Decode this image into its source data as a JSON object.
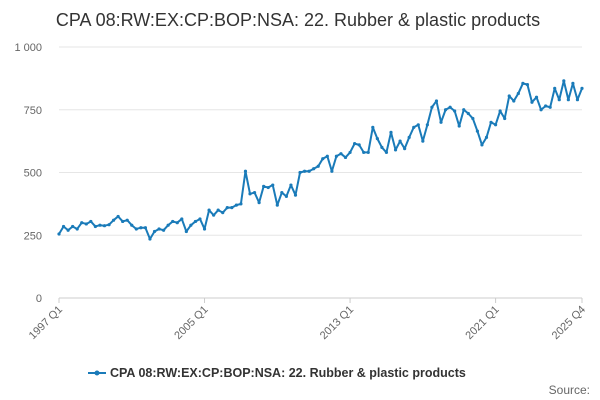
{
  "chart_data": {
    "type": "line",
    "title": "CPA 08:RW:EX:CP:BOP:NSA: 22. Rubber & plastic products",
    "xlabel": "",
    "ylabel": "",
    "ylim": [
      0,
      1000
    ],
    "y_ticks": [
      0,
      250,
      500,
      750,
      1000
    ],
    "y_tick_labels": [
      "0",
      "250",
      "500",
      "750",
      "1 000"
    ],
    "x_tick_labels": [
      "1997 Q1",
      "2005 Q1",
      "2013 Q1",
      "2021 Q1",
      "2025 Q4"
    ],
    "x_tick_indices": [
      0,
      32,
      64,
      96,
      115
    ],
    "grid": true,
    "legend_position": "bottom",
    "series": [
      {
        "name": "CPA 08:RW:EX:CP:BOP:NSA: 22. Rubber & plastic products",
        "color": "#1a7bb9",
        "x": [
          "1997 Q1",
          "1997 Q2",
          "1997 Q3",
          "1997 Q4",
          "1998 Q1",
          "1998 Q2",
          "1998 Q3",
          "1998 Q4",
          "1999 Q1",
          "1999 Q2",
          "1999 Q3",
          "1999 Q4",
          "2000 Q1",
          "2000 Q2",
          "2000 Q3",
          "2000 Q4",
          "2001 Q1",
          "2001 Q2",
          "2001 Q3",
          "2001 Q4",
          "2002 Q1",
          "2002 Q2",
          "2002 Q3",
          "2002 Q4",
          "2003 Q1",
          "2003 Q2",
          "2003 Q3",
          "2003 Q4",
          "2004 Q1",
          "2004 Q2",
          "2004 Q3",
          "2004 Q4",
          "2005 Q1",
          "2005 Q2",
          "2005 Q3",
          "2005 Q4",
          "2006 Q1",
          "2006 Q2",
          "2006 Q3",
          "2006 Q4",
          "2007 Q1",
          "2007 Q2",
          "2007 Q3",
          "2007 Q4",
          "2008 Q1",
          "2008 Q2",
          "2008 Q3",
          "2008 Q4",
          "2009 Q1",
          "2009 Q2",
          "2009 Q3",
          "2009 Q4",
          "2010 Q1",
          "2010 Q2",
          "2010 Q3",
          "2010 Q4",
          "2011 Q1",
          "2011 Q2",
          "2011 Q3",
          "2011 Q4",
          "2012 Q1",
          "2012 Q2",
          "2012 Q3",
          "2012 Q4",
          "2013 Q1",
          "2013 Q2",
          "2013 Q3",
          "2013 Q4",
          "2014 Q1",
          "2014 Q2",
          "2014 Q3",
          "2014 Q4",
          "2015 Q1",
          "2015 Q2",
          "2015 Q3",
          "2015 Q4",
          "2016 Q1",
          "2016 Q2",
          "2016 Q3",
          "2016 Q4",
          "2017 Q1",
          "2017 Q2",
          "2017 Q3",
          "2017 Q4",
          "2018 Q1",
          "2018 Q2",
          "2018 Q3",
          "2018 Q4",
          "2019 Q1",
          "2019 Q2",
          "2019 Q3",
          "2019 Q4",
          "2020 Q1",
          "2020 Q2",
          "2020 Q3",
          "2020 Q4",
          "2021 Q1",
          "2021 Q2",
          "2021 Q3",
          "2021 Q4",
          "2022 Q1",
          "2022 Q2",
          "2022 Q3",
          "2022 Q4",
          "2023 Q1",
          "2023 Q2",
          "2023 Q3",
          "2023 Q4",
          "2024 Q1",
          "2024 Q2",
          "2024 Q3",
          "2024 Q4",
          "2025 Q1",
          "2025 Q2",
          "2025 Q3",
          "2025 Q4"
        ],
        "values": [
          255,
          285,
          270,
          285,
          275,
          300,
          295,
          305,
          285,
          290,
          288,
          292,
          310,
          325,
          305,
          310,
          290,
          275,
          280,
          280,
          235,
          265,
          275,
          270,
          290,
          305,
          300,
          315,
          265,
          290,
          305,
          315,
          275,
          350,
          330,
          350,
          340,
          360,
          360,
          370,
          375,
          505,
          415,
          420,
          380,
          445,
          440,
          450,
          370,
          420,
          405,
          450,
          410,
          500,
          505,
          505,
          515,
          525,
          555,
          565,
          505,
          565,
          575,
          560,
          580,
          615,
          610,
          580,
          580,
          680,
          635,
          600,
          580,
          660,
          590,
          625,
          595,
          640,
          680,
          690,
          625,
          690,
          760,
          785,
          700,
          750,
          760,
          745,
          685,
          750,
          735,
          715,
          665,
          610,
          640,
          700,
          690,
          745,
          715,
          805,
          785,
          815,
          855,
          850,
          780,
          800,
          750,
          765,
          760,
          835,
          790,
          865,
          790,
          855,
          790,
          835
        ]
      }
    ],
    "source_label": "Source:"
  }
}
